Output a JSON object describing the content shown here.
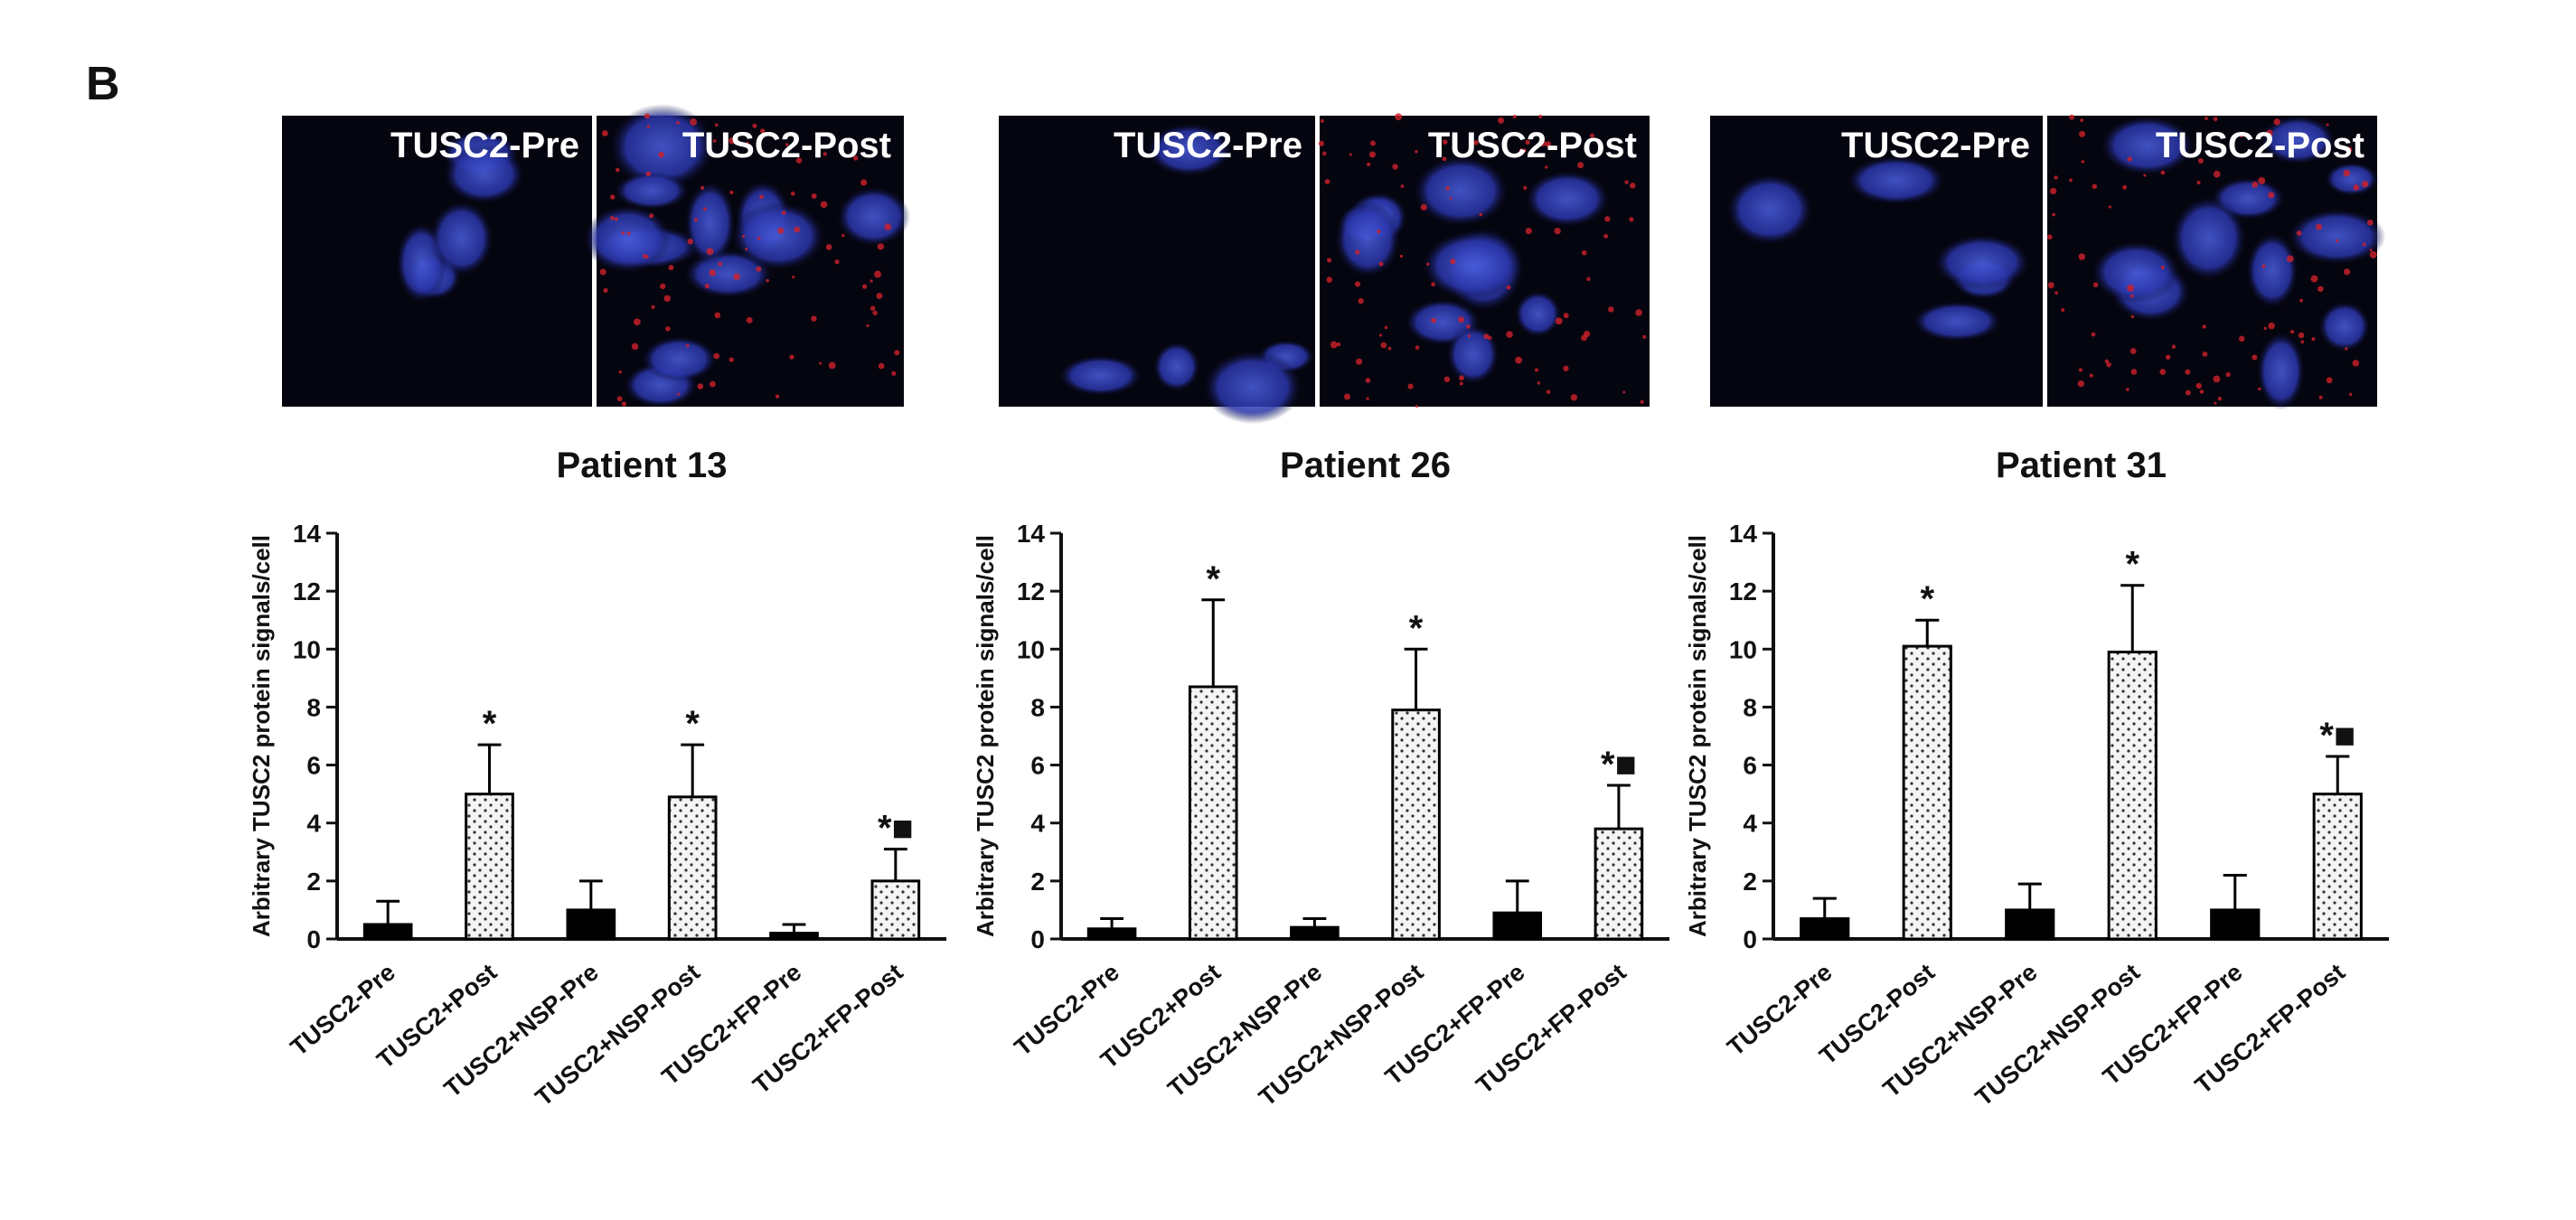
{
  "panel_label": "B",
  "images": [
    {
      "labels": [
        "TUSC2-Pre",
        "TUSC2-Post"
      ]
    },
    {
      "labels": [
        "TUSC2-Pre",
        "TUSC2-Post"
      ]
    },
    {
      "labels": [
        "TUSC2-Pre",
        "TUSC2-Post"
      ]
    }
  ],
  "chart_data": [
    {
      "type": "bar",
      "title": "Patient 13",
      "ylabel": "Arbitrary TUSC2 protein signals/cell",
      "categories": [
        "TUSC2-Pre",
        "TUSC2+Post",
        "TUSC2+NSP-Pre",
        "TUSC2+NSP-Post",
        "TUSC2+FP-Pre",
        "TUSC2+FP-Post"
      ],
      "values": [
        0.5,
        5.0,
        1.0,
        4.9,
        0.2,
        2.0
      ],
      "errors": [
        0.8,
        1.7,
        1.0,
        1.8,
        0.3,
        1.1
      ],
      "patterns": [
        "solid",
        "dotted",
        "solid",
        "dotted",
        "solid",
        "dotted"
      ],
      "color": "#000000",
      "annotations": [
        null,
        "*",
        null,
        "*",
        null,
        "*■"
      ],
      "ylim": [
        0,
        14
      ],
      "yticks": [
        0,
        2,
        4,
        6,
        8,
        10,
        12,
        14
      ]
    },
    {
      "type": "bar",
      "title": "Patient 26",
      "ylabel": "Arbitrary TUSC2 protein signals/cell",
      "categories": [
        "TUSC2-Pre",
        "TUSC2+Post",
        "TUSC2+NSP-Pre",
        "TUSC2+NSP-Post",
        "TUSC2+FP-Pre",
        "TUSC2+FP-Post"
      ],
      "values": [
        0.35,
        8.7,
        0.4,
        7.9,
        0.9,
        3.8
      ],
      "errors": [
        0.35,
        3.0,
        0.3,
        2.1,
        1.1,
        1.5
      ],
      "patterns": [
        "solid",
        "dotted",
        "solid",
        "dotted",
        "solid",
        "dotted"
      ],
      "color": "#000000",
      "annotations": [
        null,
        "*",
        null,
        "*",
        null,
        "*■"
      ],
      "ylim": [
        0,
        14
      ],
      "yticks": [
        0,
        2,
        4,
        6,
        8,
        10,
        12,
        14
      ]
    },
    {
      "type": "bar",
      "title": "Patient 31",
      "ylabel": "Arbitrary TUSC2 protein signals/cell",
      "categories": [
        "TUSC2-Pre",
        "TUSC2-Post",
        "TUSC2+NSP-Pre",
        "TUSC2+NSP-Post",
        "TUSC2+FP-Pre",
        "TUSC2+FP-Post"
      ],
      "values": [
        0.7,
        10.1,
        1.0,
        9.9,
        1.0,
        5.0
      ],
      "errors": [
        0.7,
        0.9,
        0.9,
        2.3,
        1.2,
        1.3
      ],
      "patterns": [
        "solid",
        "dotted",
        "solid",
        "dotted",
        "solid",
        "dotted"
      ],
      "color": "#000000",
      "annotations": [
        null,
        "*",
        null,
        "*",
        null,
        "*■"
      ],
      "ylim": [
        0,
        14
      ],
      "yticks": [
        0,
        2,
        4,
        6,
        8,
        10,
        12,
        14
      ]
    }
  ]
}
